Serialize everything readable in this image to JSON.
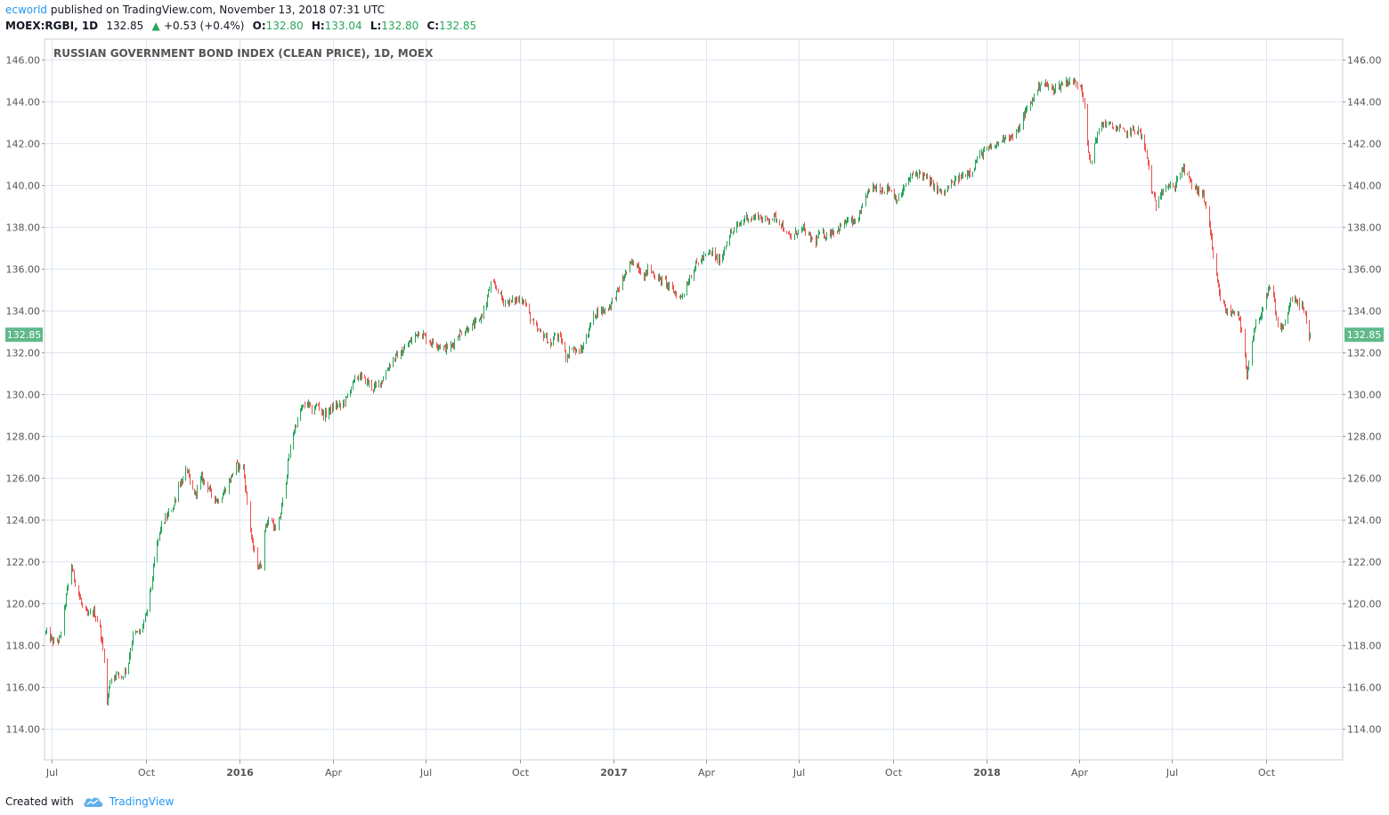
{
  "header": {
    "author": "ecworld",
    "published_text": "published on TradingView.com, November 13, 2018 07:31 UTC",
    "symbol": "MOEX:RGBI, 1D",
    "last": "132.85",
    "change_arrow": "▲",
    "change": "+0.53 (+0.4%)",
    "open_label": "O:",
    "open": "132.80",
    "high_label": "H:",
    "high": "133.04",
    "low_label": "L:",
    "low": "132.80",
    "close_label": "C:",
    "close": "132.85"
  },
  "footer": {
    "created_with": "Created with",
    "brand": "TradingView",
    "logo_icon": "tradingview-cloud-icon"
  },
  "colors": {
    "up": "#26a65b",
    "down": "#ef5350",
    "grid": "#dde6f0",
    "axis_text": "#555555",
    "price_label_bg": "#5fb98a",
    "brand": "#2196f3"
  },
  "chart_data": {
    "type": "candlestick",
    "title": "RUSSIAN GOVERNMENT BOND INDEX (CLEAN PRICE), 1D, MOEX",
    "y_ticks": [
      "114.00",
      "116.00",
      "118.00",
      "120.00",
      "122.00",
      "124.00",
      "126.00",
      "128.00",
      "130.00",
      "132.00",
      "134.00",
      "136.00",
      "138.00",
      "140.00",
      "142.00",
      "144.00",
      "146.00"
    ],
    "ylim": [
      112.5,
      147.0
    ],
    "x_ticks": [
      {
        "date": "2015-07-01",
        "label": "Jul",
        "bold": false
      },
      {
        "date": "2015-10-01",
        "label": "Oct",
        "bold": false
      },
      {
        "date": "2016-01-01",
        "label": "2016",
        "bold": true
      },
      {
        "date": "2016-04-01",
        "label": "Apr",
        "bold": false
      },
      {
        "date": "2016-07-01",
        "label": "Jul",
        "bold": false
      },
      {
        "date": "2016-10-01",
        "label": "Oct",
        "bold": false
      },
      {
        "date": "2017-01-01",
        "label": "2017",
        "bold": true
      },
      {
        "date": "2017-04-01",
        "label": "Apr",
        "bold": false
      },
      {
        "date": "2017-07-01",
        "label": "Jul",
        "bold": false
      },
      {
        "date": "2017-10-01",
        "label": "Oct",
        "bold": false
      },
      {
        "date": "2018-01-01",
        "label": "2018",
        "bold": true
      },
      {
        "date": "2018-04-01",
        "label": "Apr",
        "bold": false
      },
      {
        "date": "2018-07-01",
        "label": "Jul",
        "bold": false
      },
      {
        "date": "2018-10-01",
        "label": "Oct",
        "bold": false
      }
    ],
    "xlim": [
      "2015-06-24",
      "2018-12-15"
    ],
    "last_price": "132.85",
    "close_path": [
      [
        "2015-06-25",
        118.6
      ],
      [
        "2015-07-03",
        118.1
      ],
      [
        "2015-07-09",
        118.3
      ],
      [
        "2015-07-14",
        120.0
      ],
      [
        "2015-07-20",
        121.8
      ],
      [
        "2015-07-24",
        121.0
      ],
      [
        "2015-07-31",
        119.8
      ],
      [
        "2015-08-05",
        119.4
      ],
      [
        "2015-08-11",
        119.6
      ],
      [
        "2015-08-17",
        118.8
      ],
      [
        "2015-08-21",
        117.4
      ],
      [
        "2015-08-24",
        115.2
      ],
      [
        "2015-08-27",
        116.3
      ],
      [
        "2015-09-01",
        116.6
      ],
      [
        "2015-09-08",
        116.5
      ],
      [
        "2015-09-14",
        117.2
      ],
      [
        "2015-09-18",
        118.5
      ],
      [
        "2015-09-25",
        118.6
      ],
      [
        "2015-10-01",
        119.4
      ],
      [
        "2015-10-06",
        120.8
      ],
      [
        "2015-10-09",
        122.0
      ],
      [
        "2015-10-15",
        123.6
      ],
      [
        "2015-10-22",
        124.2
      ],
      [
        "2015-10-28",
        124.7
      ],
      [
        "2015-11-02",
        125.7
      ],
      [
        "2015-11-06",
        125.9
      ],
      [
        "2015-11-10",
        126.4
      ],
      [
        "2015-11-13",
        125.7
      ],
      [
        "2015-11-18",
        125.2
      ],
      [
        "2015-11-24",
        126.0
      ],
      [
        "2015-11-30",
        125.6
      ],
      [
        "2015-12-04",
        125.2
      ],
      [
        "2015-12-10",
        124.9
      ],
      [
        "2015-12-16",
        125.3
      ],
      [
        "2015-12-22",
        125.9
      ],
      [
        "2015-12-28",
        126.6
      ],
      [
        "2016-01-04",
        126.5
      ],
      [
        "2016-01-08",
        124.8
      ],
      [
        "2016-01-13",
        122.8
      ],
      [
        "2016-01-19",
        121.7
      ],
      [
        "2016-01-22",
        121.9
      ],
      [
        "2016-01-26",
        123.8
      ],
      [
        "2016-02-01",
        124.0
      ],
      [
        "2016-02-05",
        123.4
      ],
      [
        "2016-02-10",
        124.3
      ],
      [
        "2016-02-15",
        125.9
      ],
      [
        "2016-02-20",
        127.8
      ],
      [
        "2016-02-25",
        128.6
      ],
      [
        "2016-03-01",
        129.3
      ],
      [
        "2016-03-07",
        129.6
      ],
      [
        "2016-03-11",
        129.2
      ],
      [
        "2016-03-17",
        129.5
      ],
      [
        "2016-03-23",
        129.0
      ],
      [
        "2016-03-28",
        129.2
      ],
      [
        "2016-04-04",
        129.5
      ],
      [
        "2016-04-08",
        129.4
      ],
      [
        "2016-04-14",
        129.8
      ],
      [
        "2016-04-20",
        130.5
      ],
      [
        "2016-04-26",
        130.9
      ],
      [
        "2016-05-04",
        130.6
      ],
      [
        "2016-05-10",
        130.3
      ],
      [
        "2016-05-16",
        130.5
      ],
      [
        "2016-05-20",
        130.8
      ],
      [
        "2016-05-26",
        131.4
      ],
      [
        "2016-06-01",
        131.8
      ],
      [
        "2016-06-07",
        132.0
      ],
      [
        "2016-06-13",
        132.4
      ],
      [
        "2016-06-17",
        132.6
      ],
      [
        "2016-06-23",
        133.0
      ],
      [
        "2016-06-29",
        132.8
      ],
      [
        "2016-07-05",
        132.5
      ],
      [
        "2016-07-12",
        132.4
      ],
      [
        "2016-07-19",
        132.2
      ],
      [
        "2016-07-26",
        132.3
      ],
      [
        "2016-08-02",
        132.9
      ],
      [
        "2016-08-09",
        133.1
      ],
      [
        "2016-08-16",
        133.3
      ],
      [
        "2016-08-22",
        133.5
      ],
      [
        "2016-08-29",
        134.4
      ],
      [
        "2016-09-02",
        135.3
      ],
      [
        "2016-09-08",
        135.1
      ],
      [
        "2016-09-14",
        134.5
      ],
      [
        "2016-09-20",
        134.4
      ],
      [
        "2016-09-26",
        134.5
      ],
      [
        "2016-10-03",
        134.6
      ],
      [
        "2016-10-07",
        134.2
      ],
      [
        "2016-10-13",
        133.4
      ],
      [
        "2016-10-19",
        133.0
      ],
      [
        "2016-10-25",
        132.8
      ],
      [
        "2016-10-31",
        132.3
      ],
      [
        "2016-11-04",
        132.9
      ],
      [
        "2016-11-10",
        132.6
      ],
      [
        "2016-11-15",
        131.8
      ],
      [
        "2016-11-21",
        132.3
      ],
      [
        "2016-11-25",
        132.0
      ],
      [
        "2016-11-30",
        132.1
      ],
      [
        "2016-12-05",
        132.8
      ],
      [
        "2016-12-09",
        133.4
      ],
      [
        "2016-12-15",
        134.0
      ],
      [
        "2016-12-21",
        134.0
      ],
      [
        "2016-12-27",
        134.2
      ],
      [
        "2017-01-06",
        135.1
      ],
      [
        "2017-01-12",
        135.8
      ],
      [
        "2017-01-18",
        136.3
      ],
      [
        "2017-01-24",
        136.2
      ],
      [
        "2017-01-30",
        135.6
      ],
      [
        "2017-02-03",
        136.0
      ],
      [
        "2017-02-08",
        135.8
      ],
      [
        "2017-02-14",
        135.5
      ],
      [
        "2017-02-20",
        135.4
      ],
      [
        "2017-02-24",
        135.1
      ],
      [
        "2017-03-01",
        134.9
      ],
      [
        "2017-03-06",
        134.6
      ],
      [
        "2017-03-10",
        134.9
      ],
      [
        "2017-03-16",
        135.6
      ],
      [
        "2017-03-22",
        136.2
      ],
      [
        "2017-03-28",
        136.5
      ],
      [
        "2017-04-03",
        136.7
      ],
      [
        "2017-04-07",
        136.8
      ],
      [
        "2017-04-12",
        136.4
      ],
      [
        "2017-04-17",
        136.6
      ],
      [
        "2017-04-21",
        137.4
      ],
      [
        "2017-04-27",
        137.8
      ],
      [
        "2017-05-03",
        138.1
      ],
      [
        "2017-05-10",
        138.5
      ],
      [
        "2017-05-16",
        138.4
      ],
      [
        "2017-05-22",
        138.6
      ],
      [
        "2017-05-26",
        138.3
      ],
      [
        "2017-06-01",
        138.4
      ],
      [
        "2017-06-07",
        138.5
      ],
      [
        "2017-06-13",
        138.2
      ],
      [
        "2017-06-19",
        137.6
      ],
      [
        "2017-06-23",
        137.5
      ],
      [
        "2017-06-29",
        137.8
      ],
      [
        "2017-07-05",
        137.9
      ],
      [
        "2017-07-11",
        137.5
      ],
      [
        "2017-07-17",
        137.3
      ],
      [
        "2017-07-21",
        137.7
      ],
      [
        "2017-07-27",
        137.6
      ],
      [
        "2017-08-02",
        137.8
      ],
      [
        "2017-08-08",
        137.9
      ],
      [
        "2017-08-14",
        138.2
      ],
      [
        "2017-08-18",
        138.3
      ],
      [
        "2017-08-24",
        138.2
      ],
      [
        "2017-08-30",
        138.6
      ],
      [
        "2017-09-05",
        139.6
      ],
      [
        "2017-09-11",
        139.9
      ],
      [
        "2017-09-15",
        139.9
      ],
      [
        "2017-09-21",
        139.8
      ],
      [
        "2017-09-27",
        139.9
      ],
      [
        "2017-10-02",
        139.5
      ],
      [
        "2017-10-06",
        139.3
      ],
      [
        "2017-10-12",
        139.9
      ],
      [
        "2017-10-18",
        140.4
      ],
      [
        "2017-10-24",
        140.6
      ],
      [
        "2017-10-30",
        140.5
      ],
      [
        "2017-11-03",
        140.3
      ],
      [
        "2017-11-09",
        140.0
      ],
      [
        "2017-11-15",
        139.7
      ],
      [
        "2017-11-20",
        139.6
      ],
      [
        "2017-11-24",
        139.9
      ],
      [
        "2017-11-30",
        140.2
      ],
      [
        "2017-12-06",
        140.4
      ],
      [
        "2017-12-12",
        140.6
      ],
      [
        "2017-12-18",
        140.8
      ],
      [
        "2017-12-22",
        141.3
      ],
      [
        "2017-12-28",
        141.6
      ],
      [
        "2018-01-09",
        141.9
      ],
      [
        "2018-01-15",
        142.2
      ],
      [
        "2018-01-19",
        142.4
      ],
      [
        "2018-01-25",
        142.3
      ],
      [
        "2018-01-31",
        142.6
      ],
      [
        "2018-02-06",
        143.4
      ],
      [
        "2018-02-12",
        143.9
      ],
      [
        "2018-02-16",
        144.3
      ],
      [
        "2018-02-22",
        144.9
      ],
      [
        "2018-02-28",
        144.8
      ],
      [
        "2018-03-05",
        144.6
      ],
      [
        "2018-03-11",
        144.7
      ],
      [
        "2018-03-16",
        144.9
      ],
      [
        "2018-03-22",
        145.0
      ],
      [
        "2018-03-28",
        144.9
      ],
      [
        "2018-04-03",
        144.8
      ],
      [
        "2018-04-06",
        143.9
      ],
      [
        "2018-04-09",
        141.9
      ],
      [
        "2018-04-12",
        141.0
      ],
      [
        "2018-04-17",
        142.2
      ],
      [
        "2018-04-23",
        142.9
      ],
      [
        "2018-04-27",
        143.0
      ],
      [
        "2018-05-03",
        142.8
      ],
      [
        "2018-05-10",
        142.7
      ],
      [
        "2018-05-16",
        142.5
      ],
      [
        "2018-05-22",
        142.6
      ],
      [
        "2018-05-28",
        142.7
      ],
      [
        "2018-06-01",
        142.3
      ],
      [
        "2018-06-05",
        141.6
      ],
      [
        "2018-06-08",
        140.8
      ],
      [
        "2018-06-12",
        139.5
      ],
      [
        "2018-06-15",
        139.0
      ],
      [
        "2018-06-20",
        139.8
      ],
      [
        "2018-06-26",
        140.0
      ],
      [
        "2018-07-02",
        139.8
      ],
      [
        "2018-07-06",
        140.4
      ],
      [
        "2018-07-12",
        140.8
      ],
      [
        "2018-07-18",
        140.2
      ],
      [
        "2018-07-24",
        139.8
      ],
      [
        "2018-07-30",
        139.6
      ],
      [
        "2018-08-03",
        139.0
      ],
      [
        "2018-08-07",
        137.8
      ],
      [
        "2018-08-10",
        136.5
      ],
      [
        "2018-08-14",
        135.3
      ],
      [
        "2018-08-17",
        134.6
      ],
      [
        "2018-08-22",
        134.0
      ],
      [
        "2018-08-28",
        133.9
      ],
      [
        "2018-09-03",
        134.0
      ],
      [
        "2018-09-06",
        133.2
      ],
      [
        "2018-09-10",
        131.8
      ],
      [
        "2018-09-12",
        130.7
      ],
      [
        "2018-09-17",
        132.5
      ],
      [
        "2018-09-21",
        133.3
      ],
      [
        "2018-09-26",
        133.9
      ],
      [
        "2018-10-01",
        134.6
      ],
      [
        "2018-10-05",
        135.1
      ],
      [
        "2018-10-08",
        134.7
      ],
      [
        "2018-10-11",
        133.5
      ],
      [
        "2018-10-15",
        133.1
      ],
      [
        "2018-10-19",
        133.4
      ],
      [
        "2018-10-25",
        134.5
      ],
      [
        "2018-10-31",
        134.4
      ],
      [
        "2018-11-05",
        134.3
      ],
      [
        "2018-11-08",
        133.7
      ],
      [
        "2018-11-12",
        132.6
      ],
      [
        "2018-11-13",
        132.85
      ]
    ]
  }
}
